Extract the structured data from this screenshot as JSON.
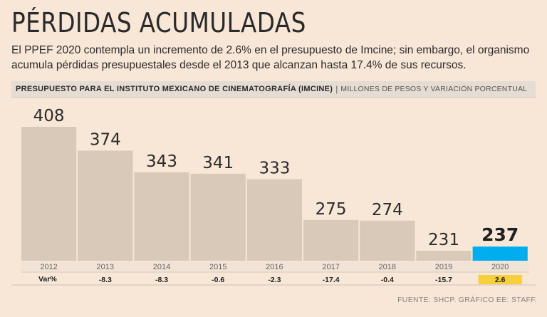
{
  "header": {
    "title": "PÉRDIDAS ACUMULADAS",
    "subtitle": "El PPEF 2020 contempla un incremento de 2.6% en el presupuesto de Imcine; sin embargo, el organismo acumula pérdidas presupuestales desde el 2013 que alcanzan hasta 17.4% de sus recursos.",
    "chart_label": "PRESUPUESTO PARA EL INSTITUTO MEXICANO DE CINEMATOGRAFÍA (IMCINE)",
    "separator": "|",
    "units": "MILLONES DE PESOS Y VARIACIÓN PORCENTUAL"
  },
  "footer": {
    "source": "FUENTE: SHCP. GRÁFICO EE: STAFF."
  },
  "colors": {
    "background": "#f8e6d6",
    "bar": "#d9c9b8",
    "highlight": "#00aeef",
    "highlight_var_bg": "#f6cf3a"
  },
  "chart_data": {
    "type": "bar",
    "title": "Presupuesto para el Instituto Mexicano de Cinematografía (Imcine)",
    "ylabel": "Millones de pesos",
    "categories": [
      "2012",
      "2013",
      "2014",
      "2015",
      "2016",
      "2017",
      "2018",
      "2019",
      "2020"
    ],
    "values": [
      408,
      374,
      343,
      341,
      333,
      275,
      274,
      231,
      237
    ],
    "value_labels": [
      "408",
      "374",
      "343",
      "341",
      "333",
      "275",
      "274",
      "231",
      "237"
    ],
    "variation_label": "Var%",
    "variation": [
      "",
      "-8.3",
      "-8.3",
      "-0.6",
      "-2.3",
      "-17.4",
      "-0.4",
      "-15.7",
      "2.6"
    ],
    "highlight_category": "2020",
    "ylim": [
      0,
      408
    ],
    "grid": false
  }
}
